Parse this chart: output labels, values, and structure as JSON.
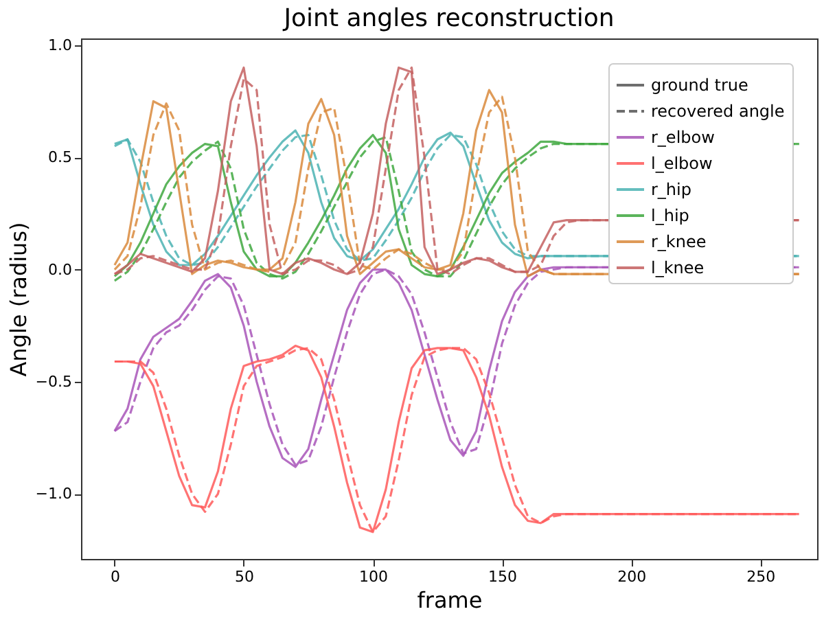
{
  "chart_data": {
    "type": "line",
    "title": "Joint angles reconstruction",
    "xlabel": "frame",
    "ylabel": "Angle (radius)",
    "xlim": [
      -13,
      272
    ],
    "xticks": [
      0,
      50,
      100,
      150,
      200,
      250
    ],
    "ylim": [
      -1.29,
      1.03
    ],
    "yticks": [
      {
        "value": -1,
        "label": "−1.0"
      },
      {
        "value": -0.5,
        "label": "−0.5"
      },
      {
        "value": 0,
        "label": "0.0"
      },
      {
        "value": 0.5,
        "label": "0.5"
      },
      {
        "value": 1,
        "label": "1.0"
      }
    ],
    "grid": false,
    "legend": "top right",
    "marker": "none",
    "x": [
      0,
      5,
      10,
      15,
      20,
      25,
      30,
      35,
      40,
      45,
      50,
      55,
      60,
      65,
      70,
      75,
      80,
      85,
      90,
      95,
      100,
      105,
      110,
      115,
      120,
      125,
      130,
      135,
      140,
      145,
      150,
      155,
      160,
      165,
      170,
      175,
      180,
      265
    ],
    "series": [
      {
        "name": "ground true",
        "color": "#555555",
        "line_style": "solid",
        "values": [
          null,
          null,
          null,
          null,
          null,
          null,
          null,
          null,
          null,
          null,
          null,
          null,
          null,
          null,
          null,
          null,
          null,
          null,
          null,
          null,
          null,
          null,
          null,
          null,
          null,
          null,
          null,
          null,
          null,
          null,
          null,
          null,
          null,
          null,
          null,
          null,
          null,
          null
        ]
      },
      {
        "name": "recovered angle",
        "color": "#555555",
        "line_style": "dashed",
        "values": [
          null,
          null,
          null,
          null,
          null,
          null,
          null,
          null,
          null,
          null,
          null,
          null,
          null,
          null,
          null,
          null,
          null,
          null,
          null,
          null,
          null,
          null,
          null,
          null,
          null,
          null,
          null,
          null,
          null,
          null,
          null,
          null,
          null,
          null,
          null,
          null,
          null,
          null
        ]
      },
      {
        "name": "r_elbow",
        "color": "#a855b8",
        "line_style": "solid",
        "values": [
          -0.72,
          -0.62,
          -0.4,
          -0.3,
          -0.26,
          -0.22,
          -0.14,
          -0.05,
          -0.02,
          -0.08,
          -0.25,
          -0.5,
          -0.7,
          -0.84,
          -0.88,
          -0.8,
          -0.58,
          -0.38,
          -0.18,
          -0.06,
          0.0,
          0.0,
          -0.06,
          -0.18,
          -0.38,
          -0.58,
          -0.76,
          -0.83,
          -0.72,
          -0.45,
          -0.23,
          -0.1,
          -0.03,
          0.0,
          0.01,
          0.01,
          0.01,
          0.01
        ]
      },
      {
        "color": "#a855b8",
        "line_style": "dashed",
        "values": [
          -0.72,
          -0.68,
          -0.5,
          -0.35,
          -0.28,
          -0.25,
          -0.18,
          -0.09,
          -0.03,
          -0.04,
          -0.16,
          -0.38,
          -0.6,
          -0.78,
          -0.87,
          -0.85,
          -0.7,
          -0.48,
          -0.28,
          -0.11,
          -0.02,
          0.0,
          -0.03,
          -0.11,
          -0.28,
          -0.48,
          -0.68,
          -0.82,
          -0.8,
          -0.6,
          -0.33,
          -0.16,
          -0.06,
          -0.01,
          0.0,
          0.01,
          0.01,
          0.01
        ]
      },
      {
        "name": "l_elbow",
        "color": "#ff5a5a",
        "line_style": "solid",
        "values": [
          -0.41,
          -0.41,
          -0.42,
          -0.52,
          -0.72,
          -0.92,
          -1.05,
          -1.06,
          -0.9,
          -0.62,
          -0.43,
          -0.41,
          -0.4,
          -0.38,
          -0.34,
          -0.36,
          -0.48,
          -0.7,
          -0.95,
          -1.15,
          -1.17,
          -0.98,
          -0.68,
          -0.44,
          -0.36,
          -0.35,
          -0.35,
          -0.36,
          -0.48,
          -0.65,
          -0.88,
          -1.05,
          -1.12,
          -1.13,
          -1.09,
          -1.09,
          -1.09,
          -1.09
        ]
      },
      {
        "color": "#ff5a5a",
        "line_style": "dashed",
        "values": [
          -0.41,
          -0.41,
          -0.41,
          -0.46,
          -0.62,
          -0.83,
          -1.0,
          -1.08,
          -1.0,
          -0.78,
          -0.52,
          -0.43,
          -0.41,
          -0.39,
          -0.36,
          -0.35,
          -0.4,
          -0.58,
          -0.82,
          -1.05,
          -1.17,
          -1.1,
          -0.85,
          -0.56,
          -0.39,
          -0.36,
          -0.35,
          -0.35,
          -0.4,
          -0.55,
          -0.75,
          -0.96,
          -1.1,
          -1.13,
          -1.1,
          -1.09,
          -1.09,
          -1.09
        ]
      },
      {
        "name": "r_hip",
        "color": "#4bb3b3",
        "line_style": "solid",
        "values": [
          0.56,
          0.58,
          0.38,
          0.2,
          0.08,
          0.02,
          0.02,
          0.07,
          0.15,
          0.24,
          0.33,
          0.42,
          0.5,
          0.57,
          0.62,
          0.52,
          0.3,
          0.14,
          0.06,
          0.04,
          0.09,
          0.18,
          0.27,
          0.38,
          0.5,
          0.58,
          0.61,
          0.55,
          0.38,
          0.22,
          0.12,
          0.07,
          0.05,
          0.06,
          0.06,
          0.06,
          0.06,
          0.06
        ]
      },
      {
        "color": "#4bb3b3",
        "line_style": "dashed",
        "values": [
          0.55,
          0.58,
          0.48,
          0.3,
          0.15,
          0.05,
          0.02,
          0.03,
          0.1,
          0.19,
          0.28,
          0.37,
          0.45,
          0.53,
          0.59,
          0.6,
          0.42,
          0.22,
          0.09,
          0.04,
          0.05,
          0.13,
          0.22,
          0.32,
          0.44,
          0.54,
          0.6,
          0.59,
          0.47,
          0.3,
          0.17,
          0.09,
          0.06,
          0.06,
          0.06,
          0.06,
          0.06,
          0.06
        ]
      },
      {
        "name": "l_hip",
        "color": "#3fa83f",
        "line_style": "solid",
        "values": [
          -0.03,
          0.02,
          0.12,
          0.25,
          0.38,
          0.46,
          0.52,
          0.56,
          0.55,
          0.3,
          0.08,
          0.0,
          -0.03,
          -0.03,
          0.03,
          0.12,
          0.22,
          0.33,
          0.45,
          0.54,
          0.6,
          0.52,
          0.18,
          0.02,
          -0.02,
          -0.03,
          0.0,
          0.1,
          0.22,
          0.34,
          0.43,
          0.48,
          0.52,
          0.57,
          0.57,
          0.56,
          0.56,
          0.56
        ]
      },
      {
        "color": "#3fa83f",
        "line_style": "dashed",
        "values": [
          -0.05,
          -0.01,
          0.07,
          0.18,
          0.3,
          0.41,
          0.48,
          0.53,
          0.57,
          0.45,
          0.18,
          0.03,
          -0.02,
          -0.04,
          -0.01,
          0.07,
          0.17,
          0.28,
          0.39,
          0.5,
          0.57,
          0.59,
          0.35,
          0.08,
          0.0,
          -0.03,
          -0.03,
          0.04,
          0.16,
          0.28,
          0.38,
          0.45,
          0.5,
          0.54,
          0.56,
          0.56,
          0.56,
          0.56
        ]
      },
      {
        "name": "r_knee",
        "color": "#d9893c",
        "line_style": "solid",
        "values": [
          0.02,
          0.12,
          0.45,
          0.75,
          0.72,
          0.35,
          -0.02,
          0.02,
          0.04,
          0.03,
          0.01,
          0.0,
          0.0,
          0.05,
          0.3,
          0.65,
          0.76,
          0.6,
          0.15,
          -0.02,
          0.03,
          0.08,
          0.09,
          0.05,
          0.01,
          0.0,
          0.02,
          0.25,
          0.62,
          0.8,
          0.7,
          0.2,
          -0.03,
          0.0,
          -0.02,
          -0.02,
          -0.02,
          -0.02
        ]
      },
      {
        "color": "#d9893c",
        "line_style": "dashed",
        "values": [
          0.0,
          0.06,
          0.28,
          0.6,
          0.74,
          0.62,
          0.2,
          0.0,
          0.03,
          0.04,
          0.02,
          0.0,
          -0.01,
          0.01,
          0.12,
          0.45,
          0.7,
          0.72,
          0.4,
          0.02,
          0.0,
          0.05,
          0.09,
          0.07,
          0.03,
          0.0,
          0.0,
          0.08,
          0.42,
          0.7,
          0.77,
          0.5,
          0.08,
          0.0,
          -0.02,
          -0.02,
          -0.02,
          -0.02
        ]
      },
      {
        "name": "l_knee",
        "color": "#c46060",
        "line_style": "solid",
        "values": [
          -0.02,
          0.02,
          0.07,
          0.05,
          0.03,
          0.01,
          -0.01,
          0.05,
          0.35,
          0.75,
          0.9,
          0.55,
          0.0,
          -0.02,
          0.03,
          0.05,
          0.03,
          0.0,
          -0.02,
          0.03,
          0.25,
          0.65,
          0.9,
          0.88,
          0.1,
          -0.02,
          0.0,
          0.03,
          0.05,
          0.04,
          0.01,
          -0.01,
          -0.01,
          0.1,
          0.21,
          0.22,
          0.22,
          0.22
        ]
      },
      {
        "color": "#c46060",
        "line_style": "dashed",
        "values": [
          -0.02,
          0.0,
          0.05,
          0.06,
          0.04,
          0.02,
          0.0,
          0.0,
          0.15,
          0.55,
          0.85,
          0.8,
          0.2,
          -0.02,
          0.0,
          0.04,
          0.04,
          0.02,
          -0.02,
          0.0,
          0.1,
          0.45,
          0.8,
          0.9,
          0.5,
          0.0,
          -0.02,
          0.02,
          0.05,
          0.05,
          0.02,
          -0.01,
          -0.01,
          0.02,
          0.15,
          0.21,
          0.22,
          0.22
        ]
      }
    ]
  }
}
